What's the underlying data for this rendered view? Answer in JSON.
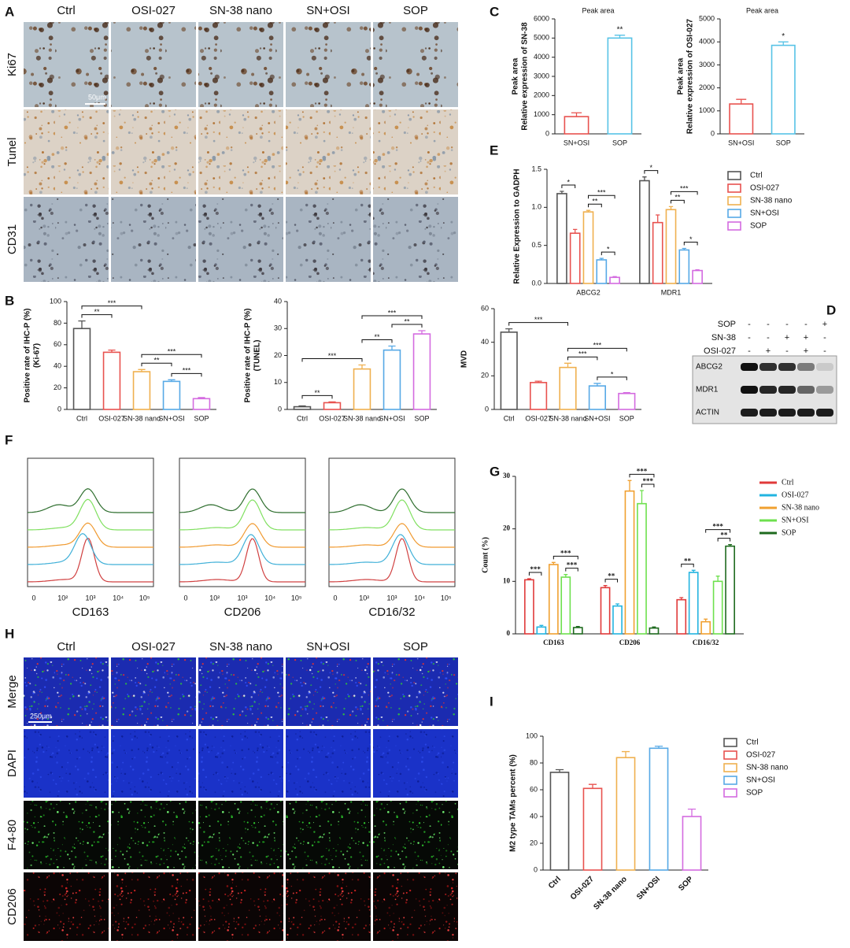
{
  "panel_labels": [
    "A",
    "B",
    "C",
    "D",
    "E",
    "F",
    "G",
    "H",
    "I"
  ],
  "panel_a": {
    "columns": [
      "Ctrl",
      "OSI-027",
      "SN-38 nano",
      "SN+OSI",
      "SOP"
    ],
    "rows": [
      "Ki67",
      "Tunel",
      "CD31"
    ],
    "scale_bar": "50μm"
  },
  "panel_d": {
    "treatments": [
      {
        "name": "SOP",
        "marks": [
          "-",
          "-",
          "-",
          "-",
          "+"
        ]
      },
      {
        "name": "SN-38",
        "marks": [
          "-",
          "-",
          "+",
          "+",
          "-"
        ]
      },
      {
        "name": "OSI-027",
        "marks": [
          "-",
          "+",
          "-",
          "+",
          "-"
        ]
      }
    ],
    "bands": [
      "ABCG2",
      "MDR1",
      "ACTIN"
    ]
  },
  "panel_f": {
    "markers": [
      "CD163",
      "CD206",
      "CD16/32"
    ],
    "x_tick_labels": [
      "0",
      "10²",
      "10³",
      "10⁴",
      "10⁵"
    ]
  },
  "panel_h": {
    "columns": [
      "Ctrl",
      "OSI-027",
      "SN-38 nano",
      "SN+OSI",
      "SOP"
    ],
    "rows": [
      "Merge",
      "DAPI",
      "F4-80",
      "CD206"
    ],
    "scale_bar": "250μm"
  },
  "chart_data": [
    {
      "type": "bar",
      "y_label": [
        "Positive rate of IHC-P (%)",
        "(Ki-67)"
      ],
      "categories": [
        "Ctrl",
        "OSI-027",
        "SN-38 nano",
        "SN+OSI",
        "SOP"
      ],
      "values": [
        75,
        53,
        35,
        26,
        10
      ],
      "errors": [
        7,
        2,
        2,
        1.5,
        1
      ],
      "colors": [
        "#555555",
        "#e8524f",
        "#efb04f",
        "#57a9e6",
        "#d46be0"
      ],
      "ylim": [
        0,
        100
      ],
      "yticks": [
        0,
        20,
        40,
        60,
        80,
        100
      ],
      "annotations": [
        {
          "from": 0,
          "to": 1,
          "text": "**"
        },
        {
          "from": 0,
          "to": 2,
          "text": "***"
        },
        {
          "from": 2,
          "to": 3,
          "text": "**"
        },
        {
          "from": 3,
          "to": 4,
          "text": "***"
        },
        {
          "from": 2,
          "to": 4,
          "text": "***"
        }
      ]
    },
    {
      "type": "bar",
      "y_label": [
        "Positive rate of IHC-P (%)",
        "(TUNEL)"
      ],
      "categories": [
        "Ctrl",
        "OSI-027",
        "SN-38 nano",
        "SN+OSI",
        "SOP"
      ],
      "values": [
        1,
        2.5,
        15,
        22,
        28
      ],
      "errors": [
        0.3,
        0.3,
        1.5,
        1.5,
        1.2
      ],
      "colors": [
        "#555555",
        "#e8524f",
        "#efb04f",
        "#57a9e6",
        "#d46be0"
      ],
      "ylim": [
        0,
        40
      ],
      "yticks": [
        0,
        10,
        20,
        30,
        40
      ],
      "annotations": [
        {
          "from": 0,
          "to": 1,
          "text": "**"
        },
        {
          "from": 0,
          "to": 2,
          "text": "***"
        },
        {
          "from": 2,
          "to": 3,
          "text": "**"
        },
        {
          "from": 3,
          "to": 4,
          "text": "**"
        },
        {
          "from": 2,
          "to": 4,
          "text": "***"
        }
      ]
    },
    {
      "type": "bar",
      "y_label": [
        "MVD"
      ],
      "categories": [
        "Ctrl",
        "OSI-027",
        "SN-38 nano",
        "SN+OSI",
        "SOP"
      ],
      "values": [
        46,
        16,
        25,
        14,
        9.5
      ],
      "errors": [
        2,
        0.8,
        2.5,
        1.5,
        0.5
      ],
      "colors": [
        "#555555",
        "#e8524f",
        "#efb04f",
        "#57a9e6",
        "#d46be0"
      ],
      "ylim": [
        0,
        60
      ],
      "yticks": [
        0,
        20,
        40,
        60
      ],
      "annotations": [
        {
          "from": 0,
          "to": 2,
          "text": "***"
        },
        {
          "from": 3,
          "to": 4,
          "text": "*"
        },
        {
          "from": 2,
          "to": 3,
          "text": "***"
        },
        {
          "from": 2,
          "to": 4,
          "text": "***"
        }
      ]
    },
    {
      "type": "bar",
      "title": "Peak area",
      "y_label": [
        "Peak area",
        "Relative expression of SN-38"
      ],
      "categories": [
        "SN+OSI",
        "SOP"
      ],
      "values": [
        900,
        5000
      ],
      "errors": [
        200,
        150
      ],
      "colors": [
        "#e8524f",
        "#57c3e6"
      ],
      "ylim": [
        0,
        6000
      ],
      "yticks": [
        0,
        1000,
        2000,
        3000,
        4000,
        5000,
        6000
      ],
      "annotations": [
        {
          "at": 1,
          "text": "**"
        }
      ]
    },
    {
      "type": "bar",
      "title": "Peak area",
      "y_label": [
        "Peak area",
        "Relative expression of OSI-027"
      ],
      "categories": [
        "SN+OSI",
        "SOP"
      ],
      "values": [
        1300,
        3850
      ],
      "errors": [
        200,
        150
      ],
      "colors": [
        "#e8524f",
        "#57c3e6"
      ],
      "ylim": [
        0,
        5000
      ],
      "yticks": [
        0,
        1000,
        2000,
        3000,
        4000,
        5000
      ],
      "annotations": [
        {
          "at": 1,
          "text": "*"
        }
      ]
    },
    {
      "type": "bar",
      "y_label": [
        "Relative Expression to GADPH"
      ],
      "categories": [
        "ABCG2",
        "MDR1"
      ],
      "series": [
        {
          "name": "Ctrl",
          "color": "#555555",
          "values": [
            1.18,
            1.35
          ],
          "errors": [
            0.03,
            0.05
          ]
        },
        {
          "name": "OSI-027",
          "color": "#e8524f",
          "values": [
            0.66,
            0.8
          ],
          "errors": [
            0.05,
            0.1
          ]
        },
        {
          "name": "SN-38 nano",
          "color": "#efb04f",
          "values": [
            0.94,
            0.97
          ],
          "errors": [
            0.02,
            0.04
          ]
        },
        {
          "name": "SN+OSI",
          "color": "#57a9e6",
          "values": [
            0.31,
            0.44
          ],
          "errors": [
            0.02,
            0.02
          ]
        },
        {
          "name": "SOP",
          "color": "#d46be0",
          "values": [
            0.08,
            0.17
          ],
          "errors": [
            0.01,
            0.01
          ]
        }
      ],
      "ylim": [
        0,
        1.5
      ],
      "yticks": [
        {
          "value": 0,
          "label": "0.0"
        },
        0.5,
        {
          "value": 1,
          "label": "1.0"
        },
        1.5
      ],
      "legend": "right",
      "annotations": [
        {
          "category": 0,
          "from": 0,
          "to": 1,
          "text": "*"
        },
        {
          "category": 0,
          "from": 2,
          "to": 3,
          "text": "**"
        },
        {
          "category": 0,
          "from": 3,
          "to": 4,
          "text": "*"
        },
        {
          "category": 0,
          "from": 2,
          "to": 4,
          "text": "***"
        },
        {
          "category": 1,
          "from": 0,
          "to": 1,
          "text": "*"
        },
        {
          "category": 1,
          "from": 2,
          "to": 3,
          "text": "**"
        },
        {
          "category": 1,
          "from": 3,
          "to": 4,
          "text": "*"
        },
        {
          "category": 1,
          "from": 2,
          "to": 4,
          "text": "***"
        }
      ]
    },
    {
      "type": "bar",
      "y_label": [
        "Count (%)"
      ],
      "categories": [
        "CD163",
        "CD206",
        "CD16/32"
      ],
      "series": [
        {
          "name": "Ctrl",
          "color": "#e03a3a",
          "values": [
            10.3,
            8.8,
            6.5
          ],
          "errors": [
            0.2,
            0.4,
            0.4
          ]
        },
        {
          "name": "OSI-027",
          "color": "#22b4e0",
          "values": [
            1.3,
            5.3,
            11.7
          ],
          "errors": [
            0.3,
            0.4,
            0.4
          ]
        },
        {
          "name": "SN-38 nano",
          "color": "#f0a030",
          "values": [
            13.2,
            27.2,
            2.3
          ],
          "errors": [
            0.4,
            2,
            0.5
          ]
        },
        {
          "name": "SN+OSI",
          "color": "#6ee04e",
          "values": [
            10.8,
            24.8,
            10
          ],
          "errors": [
            0.5,
            2.5,
            1
          ]
        },
        {
          "name": "SOP",
          "color": "#1e6a1e",
          "values": [
            1.2,
            1.1,
            16.7
          ],
          "errors": [
            0.2,
            0.2,
            0.3
          ]
        }
      ],
      "ylim": [
        0,
        30
      ],
      "yticks": [
        0,
        10,
        20,
        30
      ],
      "legend": "right",
      "annotations": [
        {
          "category": 0,
          "from": 0,
          "to": 1,
          "text": "***"
        },
        {
          "category": 0,
          "from": 3,
          "to": 4,
          "text": "***"
        },
        {
          "category": 0,
          "from": 2,
          "to": 4,
          "text": "***"
        },
        {
          "category": 1,
          "from": 0,
          "to": 1,
          "text": "**"
        },
        {
          "category": 1,
          "from": 3,
          "to": 4,
          "text": "***"
        },
        {
          "category": 1,
          "from": 2,
          "to": 4,
          "text": "***"
        },
        {
          "category": 2,
          "from": 0,
          "to": 1,
          "text": "**"
        },
        {
          "category": 2,
          "from": 3,
          "to": 4,
          "text": "**"
        },
        {
          "category": 2,
          "from": 2,
          "to": 4,
          "text": "***"
        }
      ]
    },
    {
      "type": "bar",
      "y_label": [
        "M2 type TAMs percent (%)"
      ],
      "categories": [
        "Ctrl",
        "OSI-027",
        "SN-38 nano",
        "SN+OSI",
        "SOP"
      ],
      "values": [
        73,
        61,
        84,
        91,
        40
      ],
      "errors": [
        2,
        3,
        4.5,
        1.5,
        5.5
      ],
      "colors": [
        "#555555",
        "#e8524f",
        "#efb04f",
        "#57a9e6",
        "#d46be0"
      ],
      "ylim": [
        0,
        100
      ],
      "yticks": [
        0,
        20,
        40,
        60,
        80,
        100
      ],
      "legend": "right"
    }
  ]
}
